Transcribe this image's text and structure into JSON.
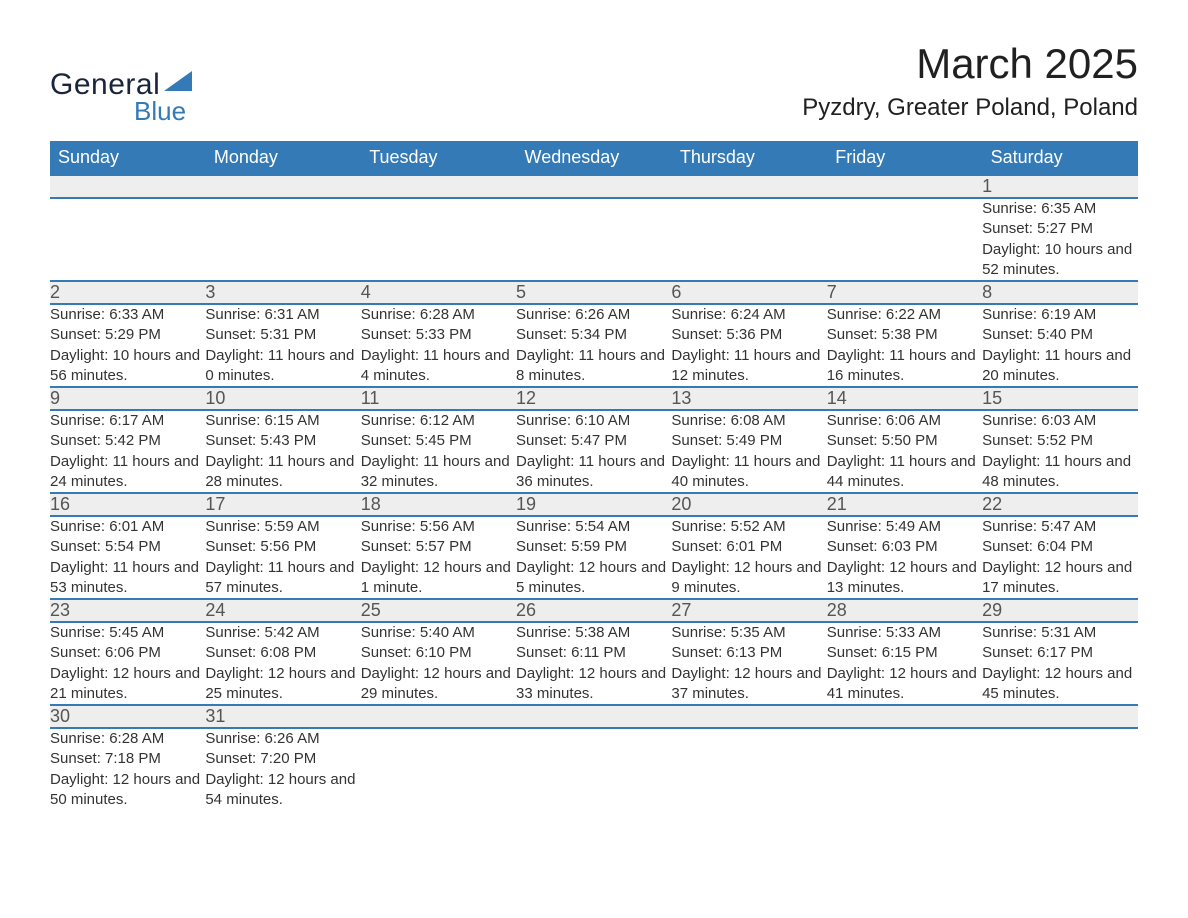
{
  "logo": {
    "word1": "General",
    "word2": "Blue",
    "triangle_color": "#2f6fae"
  },
  "header": {
    "title": "March 2025",
    "location": "Pyzdry, Greater Poland, Poland",
    "title_color": "#202020",
    "title_fontsize": 42,
    "location_fontsize": 24
  },
  "calendar": {
    "header_bg": "#337ab7",
    "header_text_color": "#ffffff",
    "daynum_bg": "#eeeeee",
    "daynum_color": "#555555",
    "row_divider_color": "#337ab7",
    "body_text_color": "#333333",
    "body_fontsize": 15,
    "columns": [
      "Sunday",
      "Monday",
      "Tuesday",
      "Wednesday",
      "Thursday",
      "Friday",
      "Saturday"
    ],
    "weeks": [
      [
        null,
        null,
        null,
        null,
        null,
        null,
        {
          "day": "1",
          "sunrise": "6:35 AM",
          "sunset": "5:27 PM",
          "daylight": "10 hours and 52 minutes."
        }
      ],
      [
        {
          "day": "2",
          "sunrise": "6:33 AM",
          "sunset": "5:29 PM",
          "daylight": "10 hours and 56 minutes."
        },
        {
          "day": "3",
          "sunrise": "6:31 AM",
          "sunset": "5:31 PM",
          "daylight": "11 hours and 0 minutes."
        },
        {
          "day": "4",
          "sunrise": "6:28 AM",
          "sunset": "5:33 PM",
          "daylight": "11 hours and 4 minutes."
        },
        {
          "day": "5",
          "sunrise": "6:26 AM",
          "sunset": "5:34 PM",
          "daylight": "11 hours and 8 minutes."
        },
        {
          "day": "6",
          "sunrise": "6:24 AM",
          "sunset": "5:36 PM",
          "daylight": "11 hours and 12 minutes."
        },
        {
          "day": "7",
          "sunrise": "6:22 AM",
          "sunset": "5:38 PM",
          "daylight": "11 hours and 16 minutes."
        },
        {
          "day": "8",
          "sunrise": "6:19 AM",
          "sunset": "5:40 PM",
          "daylight": "11 hours and 20 minutes."
        }
      ],
      [
        {
          "day": "9",
          "sunrise": "6:17 AM",
          "sunset": "5:42 PM",
          "daylight": "11 hours and 24 minutes."
        },
        {
          "day": "10",
          "sunrise": "6:15 AM",
          "sunset": "5:43 PM",
          "daylight": "11 hours and 28 minutes."
        },
        {
          "day": "11",
          "sunrise": "6:12 AM",
          "sunset": "5:45 PM",
          "daylight": "11 hours and 32 minutes."
        },
        {
          "day": "12",
          "sunrise": "6:10 AM",
          "sunset": "5:47 PM",
          "daylight": "11 hours and 36 minutes."
        },
        {
          "day": "13",
          "sunrise": "6:08 AM",
          "sunset": "5:49 PM",
          "daylight": "11 hours and 40 minutes."
        },
        {
          "day": "14",
          "sunrise": "6:06 AM",
          "sunset": "5:50 PM",
          "daylight": "11 hours and 44 minutes."
        },
        {
          "day": "15",
          "sunrise": "6:03 AM",
          "sunset": "5:52 PM",
          "daylight": "11 hours and 48 minutes."
        }
      ],
      [
        {
          "day": "16",
          "sunrise": "6:01 AM",
          "sunset": "5:54 PM",
          "daylight": "11 hours and 53 minutes."
        },
        {
          "day": "17",
          "sunrise": "5:59 AM",
          "sunset": "5:56 PM",
          "daylight": "11 hours and 57 minutes."
        },
        {
          "day": "18",
          "sunrise": "5:56 AM",
          "sunset": "5:57 PM",
          "daylight": "12 hours and 1 minute."
        },
        {
          "day": "19",
          "sunrise": "5:54 AM",
          "sunset": "5:59 PM",
          "daylight": "12 hours and 5 minutes."
        },
        {
          "day": "20",
          "sunrise": "5:52 AM",
          "sunset": "6:01 PM",
          "daylight": "12 hours and 9 minutes."
        },
        {
          "day": "21",
          "sunrise": "5:49 AM",
          "sunset": "6:03 PM",
          "daylight": "12 hours and 13 minutes."
        },
        {
          "day": "22",
          "sunrise": "5:47 AM",
          "sunset": "6:04 PM",
          "daylight": "12 hours and 17 minutes."
        }
      ],
      [
        {
          "day": "23",
          "sunrise": "5:45 AM",
          "sunset": "6:06 PM",
          "daylight": "12 hours and 21 minutes."
        },
        {
          "day": "24",
          "sunrise": "5:42 AM",
          "sunset": "6:08 PM",
          "daylight": "12 hours and 25 minutes."
        },
        {
          "day": "25",
          "sunrise": "5:40 AM",
          "sunset": "6:10 PM",
          "daylight": "12 hours and 29 minutes."
        },
        {
          "day": "26",
          "sunrise": "5:38 AM",
          "sunset": "6:11 PM",
          "daylight": "12 hours and 33 minutes."
        },
        {
          "day": "27",
          "sunrise": "5:35 AM",
          "sunset": "6:13 PM",
          "daylight": "12 hours and 37 minutes."
        },
        {
          "day": "28",
          "sunrise": "5:33 AM",
          "sunset": "6:15 PM",
          "daylight": "12 hours and 41 minutes."
        },
        {
          "day": "29",
          "sunrise": "5:31 AM",
          "sunset": "6:17 PM",
          "daylight": "12 hours and 45 minutes."
        }
      ],
      [
        {
          "day": "30",
          "sunrise": "6:28 AM",
          "sunset": "7:18 PM",
          "daylight": "12 hours and 50 minutes."
        },
        {
          "day": "31",
          "sunrise": "6:26 AM",
          "sunset": "7:20 PM",
          "daylight": "12 hours and 54 minutes."
        },
        null,
        null,
        null,
        null,
        null
      ]
    ]
  },
  "labels": {
    "sunrise": "Sunrise:",
    "sunset": "Sunset:",
    "daylight": "Daylight:"
  }
}
